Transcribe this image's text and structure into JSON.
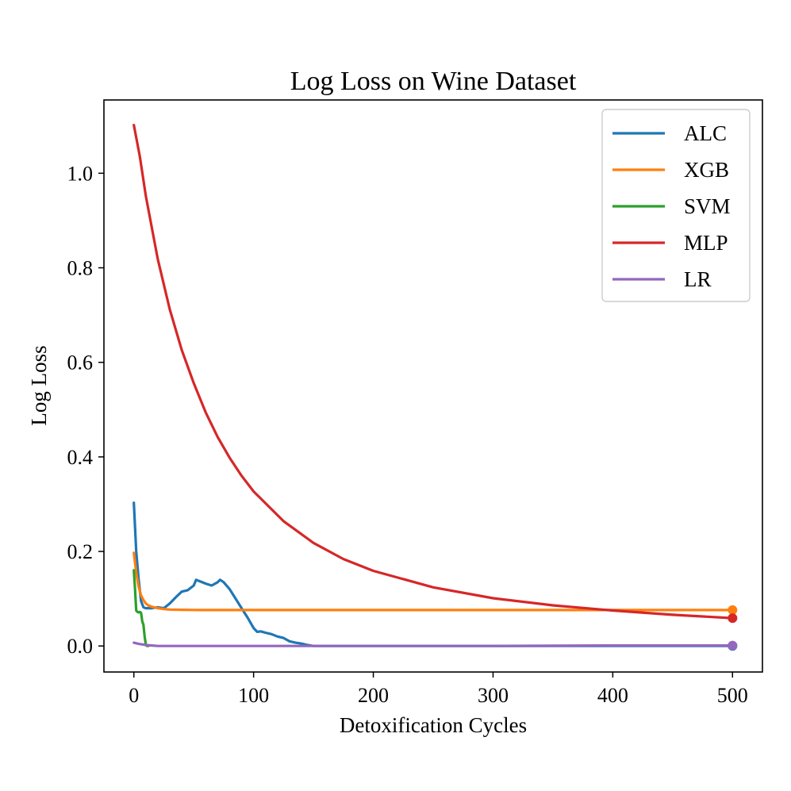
{
  "chart_data": {
    "type": "line",
    "title": "Log Loss on Wine Dataset",
    "xlabel": "Detoxification Cycles",
    "ylabel": "Log Loss",
    "xlim": [
      -25,
      525
    ],
    "ylim": [
      -0.055,
      1.155
    ],
    "xticks": [
      0,
      100,
      200,
      300,
      400,
      500
    ],
    "yticks": [
      0.0,
      0.2,
      0.4,
      0.6,
      0.8,
      1.0
    ],
    "xtick_labels": [
      "0",
      "100",
      "200",
      "300",
      "400",
      "500"
    ],
    "ytick_labels": [
      "0.0",
      "0.2",
      "0.4",
      "0.6",
      "0.8",
      "1.0"
    ],
    "grid": false,
    "legend_position": "top-right",
    "series": [
      {
        "name": "ALC",
        "color": "#1f77b4",
        "end_marker": true,
        "x": [
          0,
          2,
          4,
          6,
          8,
          10,
          15,
          20,
          25,
          30,
          35,
          40,
          45,
          50,
          52,
          55,
          60,
          65,
          70,
          72,
          75,
          80,
          85,
          90,
          95,
          100,
          103,
          106,
          110,
          115,
          120,
          125,
          130,
          135,
          140,
          145,
          150,
          160,
          200,
          300,
          400,
          500
        ],
        "y": [
          0.303,
          0.2,
          0.14,
          0.095,
          0.082,
          0.08,
          0.08,
          0.082,
          0.08,
          0.09,
          0.103,
          0.115,
          0.118,
          0.128,
          0.14,
          0.137,
          0.132,
          0.128,
          0.135,
          0.14,
          0.135,
          0.12,
          0.1,
          0.08,
          0.06,
          0.038,
          0.03,
          0.031,
          0.028,
          0.025,
          0.02,
          0.017,
          0.01,
          0.007,
          0.005,
          0.002,
          0.0,
          0.0,
          0.0,
          0.0,
          0.0,
          0.0
        ]
      },
      {
        "name": "XGB",
        "color": "#ff7f0e",
        "end_marker": true,
        "x": [
          0,
          2,
          4,
          6,
          8,
          10,
          12,
          15,
          20,
          25,
          30,
          40,
          50,
          60,
          80,
          100,
          200,
          300,
          400,
          500
        ],
        "y": [
          0.197,
          0.155,
          0.125,
          0.107,
          0.097,
          0.09,
          0.086,
          0.083,
          0.08,
          0.078,
          0.077,
          0.0765,
          0.0762,
          0.076,
          0.076,
          0.076,
          0.076,
          0.076,
          0.076,
          0.076
        ]
      },
      {
        "name": "SVM",
        "color": "#2ca02c",
        "end_marker": false,
        "x": [
          0,
          1,
          2,
          3,
          4,
          5,
          6,
          7,
          8,
          9,
          10,
          11,
          12
        ],
        "y": [
          0.16,
          0.12,
          0.075,
          0.072,
          0.071,
          0.072,
          0.07,
          0.052,
          0.045,
          0.02,
          0.003,
          0.0,
          0.0
        ]
      },
      {
        "name": "MLP",
        "color": "#d62728",
        "end_marker": true,
        "x": [
          0,
          5,
          10,
          20,
          30,
          40,
          50,
          60,
          70,
          80,
          90,
          100,
          125,
          150,
          175,
          200,
          250,
          300,
          350,
          400,
          450,
          500
        ],
        "y": [
          1.102,
          1.035,
          0.952,
          0.818,
          0.712,
          0.626,
          0.556,
          0.494,
          0.442,
          0.398,
          0.36,
          0.327,
          0.264,
          0.218,
          0.184,
          0.159,
          0.124,
          0.101,
          0.086,
          0.075,
          0.066,
          0.059
        ]
      },
      {
        "name": "LR",
        "color": "#9467bd",
        "end_marker": true,
        "x": [
          0,
          3,
          5,
          8,
          10,
          15,
          20,
          30,
          100,
          200,
          300,
          400,
          500
        ],
        "y": [
          0.007,
          0.005,
          0.004,
          0.003,
          0.002,
          0.001,
          0.0,
          0.0,
          0.0,
          0.0,
          0.0,
          0.001,
          0.001
        ]
      }
    ]
  }
}
